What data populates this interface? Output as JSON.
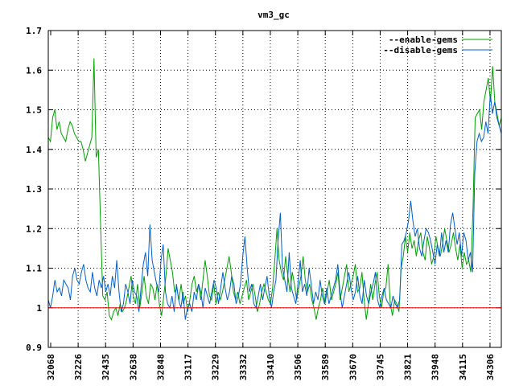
{
  "chart_data": {
    "type": "line",
    "title": "vm3_gc",
    "xlabel": "",
    "ylabel": "",
    "ylim": [
      0.9,
      1.7
    ],
    "yticks": [
      "0.9",
      "1",
      "1.1",
      "1.2",
      "1.3",
      "1.4",
      "1.5",
      "1.6",
      "1.7"
    ],
    "xticks": [
      "32068",
      "32226",
      "32435",
      "32638",
      "32848",
      "33117",
      "33229",
      "33332",
      "33410",
      "33506",
      "33589",
      "33670",
      "33745",
      "33821",
      "33948",
      "34115",
      "34306"
    ],
    "grid": true,
    "legend_position": "top-right",
    "colors": {
      "enable": "#00a000",
      "disable": "#0060d0",
      "baseline": "#ff0000",
      "grid": "#000000"
    },
    "series": [
      {
        "name": "--enable-gems",
        "values": [
          1.43,
          1.42,
          1.48,
          1.5,
          1.45,
          1.47,
          1.44,
          1.43,
          1.42,
          1.45,
          1.47,
          1.46,
          1.44,
          1.43,
          1.42,
          1.42,
          1.4,
          1.37,
          1.39,
          1.41,
          1.43,
          1.63,
          1.38,
          1.4,
          1.21,
          1.03,
          1.02,
          1.04,
          0.98,
          0.97,
          0.99,
          1.0,
          0.98,
          1.01,
          0.99,
          1.0,
          1.02,
          1.05,
          1.08,
          1.03,
          1.01,
          1.06,
          1.0,
          1.04,
          1.08,
          1.03,
          1.01,
          1.06,
          1.05,
          1.02,
          1.06,
          1.01,
          0.98,
          1.03,
          1.08,
          1.15,
          1.12,
          1.09,
          1.04,
          1.05,
          1.02,
          1.06,
          1.01,
          1.03,
          0.99,
          1.02,
          1.06,
          1.08,
          1.04,
          1.06,
          1.02,
          1.07,
          1.12,
          1.08,
          1.03,
          1.02,
          1.06,
          1.01,
          1.04,
          1.02,
          1.04,
          1.07,
          1.1,
          1.13,
          1.09,
          1.04,
          1.02,
          1.04,
          1.01,
          1.03,
          1.05,
          1.07,
          1.02,
          1.04,
          1.06,
          1.03,
          0.99,
          1.01,
          1.04,
          1.06,
          1.04,
          1.02,
          1.01,
          1.05,
          1.12,
          1.2,
          1.12,
          1.09,
          1.07,
          1.13,
          1.08,
          1.04,
          1.09,
          1.06,
          1.02,
          1.05,
          1.08,
          1.13,
          1.07,
          1.04,
          1.06,
          1.02,
          1.0,
          0.97,
          1.0,
          1.02,
          1.05,
          1.01,
          1.04,
          1.07,
          1.02,
          1.04,
          1.06,
          1.09,
          1.02,
          1.05,
          1.08,
          1.11,
          1.04,
          1.06,
          1.08,
          1.11,
          1.04,
          1.05,
          1.09,
          1.02,
          0.97,
          1.01,
          1.06,
          1.02,
          1.06,
          1.09,
          1.03,
          1.0,
          1.04,
          1.05,
          1.11,
          1.01,
          0.98,
          1.02,
          1.01,
          0.99,
          1.1,
          1.13,
          1.18,
          1.14,
          1.19,
          1.15,
          1.17,
          1.13,
          1.17,
          1.19,
          1.14,
          1.12,
          1.18,
          1.15,
          1.11,
          1.13,
          1.18,
          1.15,
          1.13,
          1.16,
          1.2,
          1.17,
          1.14,
          1.16,
          1.19,
          1.15,
          1.12,
          1.16,
          1.1,
          1.14,
          1.11,
          1.12,
          1.09,
          1.25,
          1.48,
          1.49,
          1.5,
          1.45,
          1.52,
          1.55,
          1.58,
          1.52,
          1.61,
          1.52,
          1.49,
          1.46,
          1.48
        ]
      },
      {
        "name": "--disable-gems",
        "values": [
          1.02,
          1.0,
          1.03,
          1.07,
          1.04,
          1.05,
          1.03,
          1.07,
          1.06,
          1.05,
          1.02,
          1.08,
          1.1,
          1.07,
          1.06,
          1.09,
          1.11,
          1.07,
          1.05,
          1.04,
          1.09,
          1.05,
          1.03,
          1.07,
          1.05,
          1.08,
          1.04,
          1.06,
          1.03,
          1.08,
          1.05,
          1.12,
          1.04,
          0.99,
          1.01,
          1.06,
          1.04,
          1.01,
          1.07,
          1.04,
          1.03,
          0.99,
          1.05,
          1.11,
          1.14,
          1.08,
          1.21,
          1.12,
          1.09,
          1.06,
          1.04,
          1.12,
          1.16,
          1.04,
          1.01,
          1.0,
          1.03,
          0.99,
          1.06,
          1.02,
          1.0,
          1.04,
          0.97,
          1.0,
          1.01,
          0.99,
          1.04,
          1.02,
          1.06,
          1.04,
          1.0,
          1.05,
          1.03,
          1.01,
          1.04,
          1.07,
          1.05,
          1.01,
          1.05,
          1.09,
          1.05,
          1.02,
          1.04,
          1.08,
          1.06,
          1.01,
          1.03,
          1.06,
          1.13,
          1.18,
          1.1,
          1.04,
          1.06,
          1.01,
          1.0,
          1.03,
          1.06,
          1.02,
          1.05,
          1.08,
          1.03,
          1.0,
          1.04,
          1.07,
          1.17,
          1.24,
          1.1,
          1.07,
          1.04,
          1.14,
          1.05,
          1.03,
          1.01,
          1.06,
          1.12,
          1.04,
          1.06,
          1.03,
          1.1,
          1.06,
          1.01,
          1.04,
          1.02,
          1.07,
          1.03,
          1.01,
          1.05,
          1.01,
          1.03,
          1.05,
          1.07,
          1.11,
          1.04,
          1.0,
          1.03,
          1.06,
          1.09,
          1.05,
          1.02,
          1.04,
          1.08,
          1.03,
          1.01,
          1.07,
          1.03,
          1.01,
          1.04,
          1.06,
          1.09,
          1.02,
          1.0,
          1.03,
          1.05,
          1.02,
          1.01,
          1.0,
          1.03,
          1.01,
          1.0,
          1.02,
          1.16,
          1.17,
          1.19,
          1.22,
          1.27,
          1.22,
          1.18,
          1.2,
          1.15,
          1.13,
          1.17,
          1.2,
          1.19,
          1.17,
          1.14,
          1.11,
          1.16,
          1.13,
          1.19,
          1.14,
          1.17,
          1.14,
          1.21,
          1.24,
          1.2,
          1.16,
          1.19,
          1.13,
          1.19,
          1.17,
          1.12,
          1.14,
          1.09,
          1.34,
          1.42,
          1.44,
          1.42,
          1.43,
          1.47,
          1.44,
          1.54,
          1.49,
          1.52,
          1.48,
          1.46,
          1.44
        ]
      },
      {
        "name": "",
        "values": [
          1,
          1
        ]
      }
    ]
  }
}
